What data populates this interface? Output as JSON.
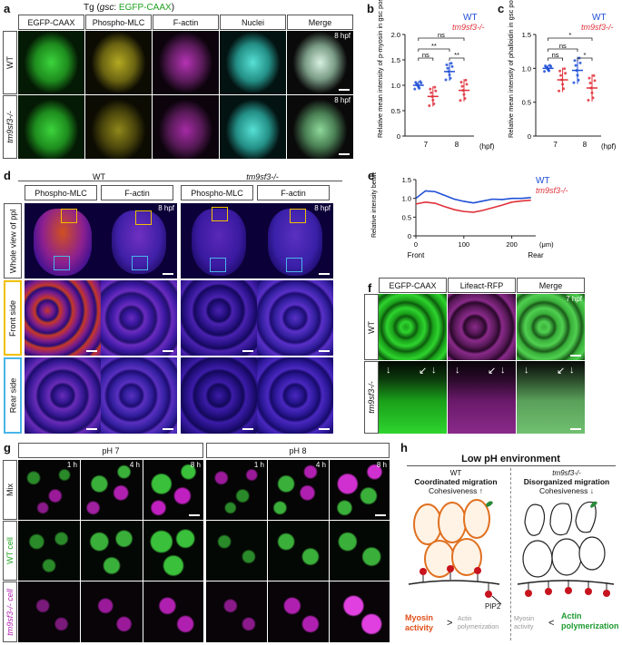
{
  "panel_a": {
    "letter": "a",
    "title_prefix": "Tg (",
    "title_gene": "gsc",
    "title_sep": ": ",
    "title_construct": "EGFP-CAAX",
    "title_suffix": ")",
    "columns": [
      "EGFP-CAAX",
      "Phospho-MLC",
      "F-actin",
      "Nuclei",
      "Merge"
    ],
    "rows": [
      "WT",
      "tm9sf3-/-"
    ],
    "time": "8 hpf"
  },
  "panel_b": {
    "letter": "b",
    "legend_wt": "WT",
    "legend_mut": "tm9sf3-/-",
    "ylabel": "Relative mean intensity of p-myosin in gsc positive cells",
    "xlabel": "(hpf)",
    "sig": [
      "**",
      "ns",
      "ns",
      "**"
    ]
  },
  "panel_c": {
    "letter": "c",
    "legend_wt": "WT",
    "legend_mut": "tm9sf3-/-",
    "ylabel": "Relative mean intensity of phalloidin in gsc positive cells",
    "xlabel": "(hpf)",
    "sig": [
      "ns",
      "ns",
      "*",
      "*"
    ]
  },
  "chart_data": [
    {
      "type": "scatter",
      "categories": [
        "7",
        "8"
      ],
      "ylim": [
        0,
        2
      ],
      "yticks": [
        "0",
        "0.5",
        "1.0",
        "1.5",
        "2.0"
      ],
      "series": [
        {
          "name": "WT",
          "color": "#1f4fd6",
          "mean": [
            1.0,
            1.27
          ],
          "sd": [
            0.08,
            0.18
          ]
        },
        {
          "name": "tm9sf3-/-",
          "color": "#e0303a",
          "mean": [
            0.78,
            0.9
          ],
          "sd": [
            0.2,
            0.22
          ]
        }
      ]
    },
    {
      "type": "scatter",
      "categories": [
        "7",
        "8"
      ],
      "ylim": [
        0,
        1.5
      ],
      "yticks": [
        "0",
        "0.5",
        "1.0",
        "1.5"
      ],
      "series": [
        {
          "name": "WT",
          "color": "#1f4fd6",
          "mean": [
            1.0,
            0.97
          ],
          "sd": [
            0.05,
            0.2
          ]
        },
        {
          "name": "tm9sf3-/-",
          "color": "#e0303a",
          "mean": [
            0.83,
            0.71
          ],
          "sd": [
            0.18,
            0.2
          ]
        }
      ]
    },
    {
      "type": "line",
      "xlim": [
        0,
        250
      ],
      "xticks": [
        "0",
        "100",
        "200"
      ],
      "ylim": [
        0,
        1.5
      ],
      "yticks": [
        "0",
        "0.5",
        "1.0",
        "1.5"
      ],
      "xunit": "(μm)",
      "xlabel_left": "Front",
      "xlabel_right": "Rear",
      "ylabel": "Relative intensity between pMLC and phalloidin",
      "series": [
        {
          "name": "WT",
          "color": "#1f4fd6",
          "x": [
            0,
            20,
            40,
            60,
            80,
            100,
            120,
            140,
            160,
            180,
            200,
            220,
            240
          ],
          "y": [
            1.0,
            1.2,
            1.18,
            1.08,
            0.98,
            0.92,
            0.88,
            0.93,
            0.98,
            0.97,
            1.0,
            1.0,
            1.02
          ]
        },
        {
          "name": "tm9sf3-/-",
          "color": "#e0303a",
          "x": [
            0,
            20,
            40,
            60,
            80,
            100,
            120,
            140,
            160,
            180,
            200,
            220,
            240
          ],
          "y": [
            0.85,
            0.9,
            0.87,
            0.78,
            0.7,
            0.65,
            0.63,
            0.68,
            0.75,
            0.82,
            0.9,
            0.93,
            0.95
          ]
        }
      ]
    }
  ],
  "panel_d": {
    "letter": "d",
    "group_wt": "WT",
    "group_mut": "tm9sf3-/-",
    "columns": [
      "Phospho-MLC",
      "F-actin",
      "Phospho-MLC",
      "F-actin"
    ],
    "rows": [
      "Whole view of ppl",
      "Front side",
      "Rear side"
    ],
    "time": "8 hpf"
  },
  "panel_e": {
    "letter": "e",
    "legend_wt": "WT",
    "legend_mut": "tm9sf3-/-"
  },
  "panel_f": {
    "letter": "f",
    "columns": [
      "EGFP-CAAX",
      "Lifeact-RFP",
      "Merge"
    ],
    "rows": [
      "WT",
      "tm9sf3-/-"
    ],
    "time": "7 hpf"
  },
  "panel_g": {
    "letter": "g",
    "group_a": "pH 7",
    "group_b": "pH 8",
    "times": [
      "1 h",
      "4 h",
      "8 h",
      "1 h",
      "4 h",
      "8 h"
    ],
    "rows": [
      "Mix",
      "WT cell",
      "tm9sf3-/- cell"
    ]
  },
  "panel_h": {
    "letter": "h",
    "title": "Low pH environment",
    "wt": {
      "label": "WT",
      "heading": "Coordinated migration",
      "sub": "Cohesiveness ↑",
      "left": "Myosin activity",
      "comparator": ">",
      "right": "Actin polymerization",
      "pip": "PIP2"
    },
    "mut": {
      "label": "tm9sf3-/-",
      "heading": "Disorganized migration",
      "sub": "Cohesiveness ↓",
      "left": "Myosin activity",
      "comparator": "<",
      "right": "Actin polymerization"
    }
  }
}
